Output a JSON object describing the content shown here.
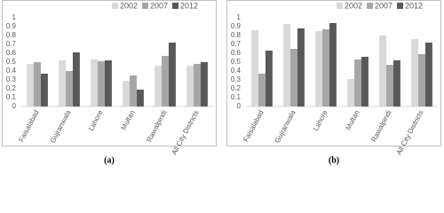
{
  "chart_data": [
    {
      "type": "bar",
      "caption": "(a)",
      "categories": [
        "Faisalabad",
        "Gujranwala",
        "Lahore",
        "Multan",
        "Rawalpindi",
        "All City Districts"
      ],
      "series": [
        {
          "name": "2002",
          "color": "#d9d9d9",
          "values": [
            0.48,
            0.52,
            0.53,
            0.29,
            0.46,
            0.46
          ]
        },
        {
          "name": "2007",
          "color": "#a6a6a6",
          "values": [
            0.5,
            0.4,
            0.51,
            0.35,
            0.57,
            0.48
          ]
        },
        {
          "name": "2012",
          "color": "#595959",
          "values": [
            0.37,
            0.61,
            0.52,
            0.19,
            0.72,
            0.5
          ]
        }
      ],
      "ylim": [
        0,
        1
      ],
      "yticks": [
        0,
        0.1,
        0.2,
        0.3,
        0.4,
        0.5,
        0.6,
        0.7,
        0.8,
        0.9,
        1
      ],
      "grid": false
    },
    {
      "type": "bar",
      "caption": "(b)",
      "categories": [
        "Faisalabad",
        "Gujranwala",
        "Lahore",
        "Multan",
        "Rawalpindi",
        "All City Districts"
      ],
      "series": [
        {
          "name": "2002",
          "color": "#d9d9d9",
          "values": [
            0.86,
            0.93,
            0.85,
            0.31,
            0.8,
            0.76
          ]
        },
        {
          "name": "2007",
          "color": "#a6a6a6",
          "values": [
            0.37,
            0.65,
            0.87,
            0.53,
            0.47,
            0.59
          ]
        },
        {
          "name": "2012",
          "color": "#595959",
          "values": [
            0.63,
            0.88,
            0.94,
            0.56,
            0.52,
            0.72
          ]
        }
      ],
      "ylim": [
        0,
        1
      ],
      "yticks": [
        0,
        0.1,
        0.2,
        0.3,
        0.4,
        0.5,
        0.6,
        0.7,
        0.8,
        0.9,
        1
      ],
      "grid": false
    }
  ]
}
